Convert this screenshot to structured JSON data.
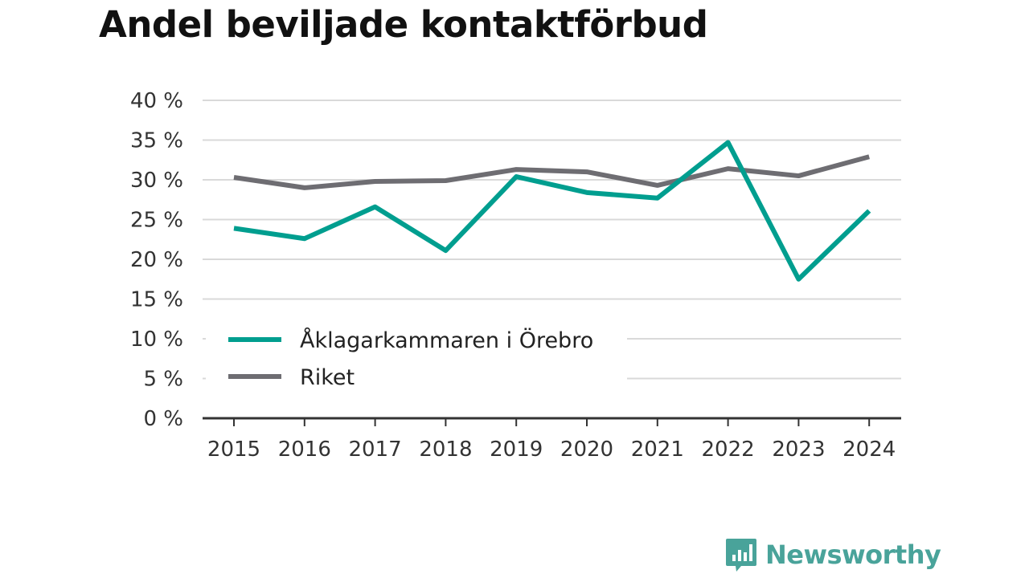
{
  "chart_data": {
    "type": "line",
    "title": "Andel beviljade kontaktförbud",
    "x": [
      "2015",
      "2016",
      "2017",
      "2018",
      "2019",
      "2020",
      "2021",
      "2022",
      "2023",
      "2024"
    ],
    "series": [
      {
        "name": "Åklagarkammaren i Örebro",
        "color": "#009e8f",
        "values": [
          23.9,
          22.6,
          26.6,
          21.1,
          30.4,
          28.4,
          27.7,
          34.7,
          17.5,
          26.1
        ]
      },
      {
        "name": "Riket",
        "color": "#6e6d72",
        "values": [
          30.3,
          29.0,
          29.8,
          29.9,
          31.3,
          31.0,
          29.3,
          31.4,
          30.5,
          32.9
        ]
      }
    ],
    "yticks": [
      "0 %",
      "5 %",
      "10 %",
      "15 %",
      "20 %",
      "25 %",
      "30 %",
      "35 %",
      "40 %"
    ],
    "ylim": [
      0,
      40
    ],
    "grid": true,
    "legend_position": "bottom-left"
  },
  "brand": {
    "name": "Newsworthy",
    "icon": "bar-chart-speech-icon",
    "color": "#49a39a"
  }
}
